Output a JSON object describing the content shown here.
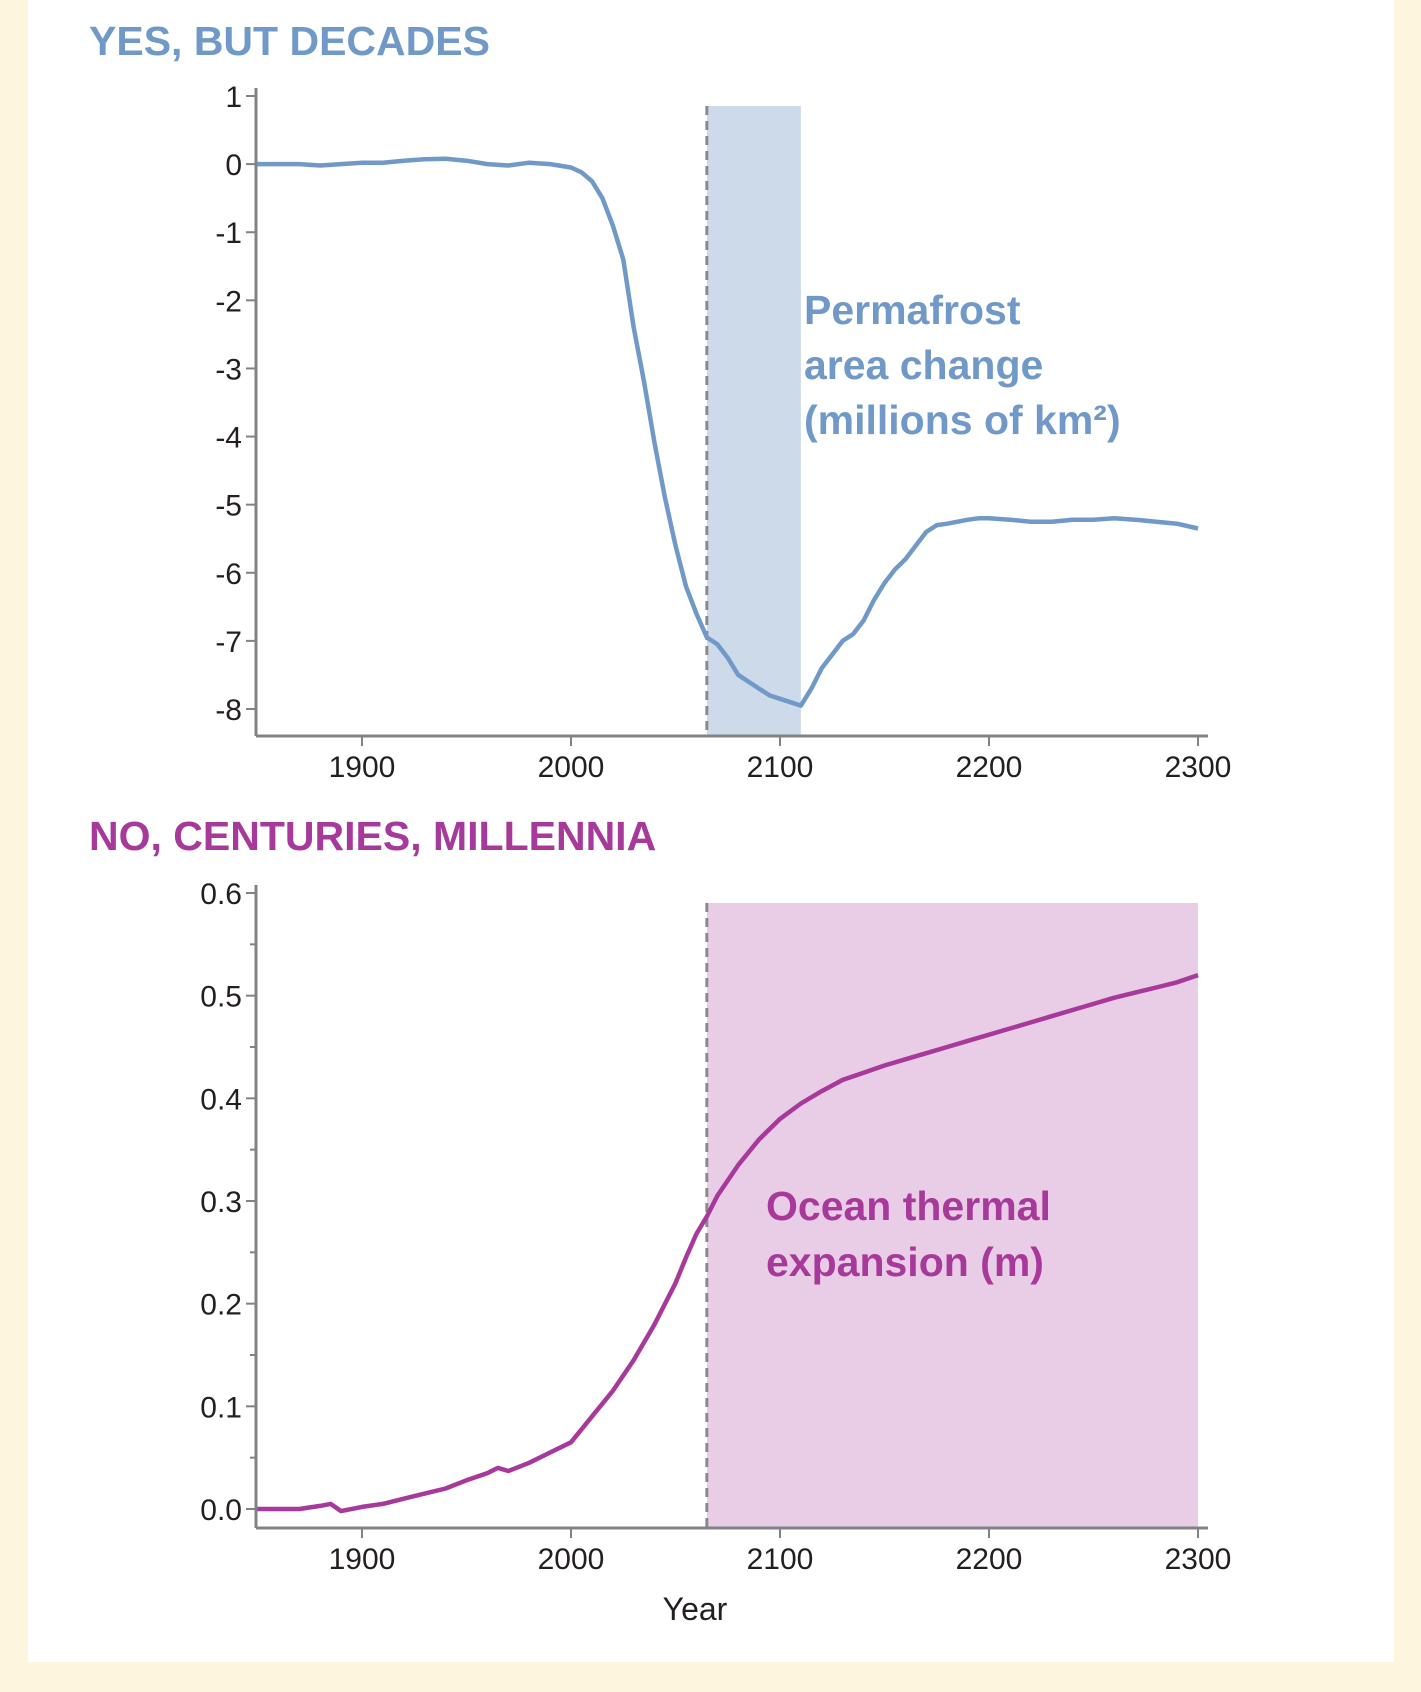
{
  "colors": {
    "permafrost": "#7199c7",
    "permafrost_band": "#cddaea",
    "ocean": "#a7399a",
    "ocean_band": "#e9cde6",
    "axis": "#808285",
    "dashed": "#8a8a8e",
    "text": "#231f20"
  },
  "chart_data": [
    {
      "type": "line",
      "title": "YES, BUT DECADES",
      "annotation": [
        "Permafrost",
        "area change",
        "(millions of km²)"
      ],
      "xlabel": "",
      "ylabel": "",
      "xlim": [
        1850,
        2300
      ],
      "ylim": [
        -8.2,
        1.0
      ],
      "xticks": [
        1900,
        2000,
        2100,
        2200,
        2300
      ],
      "yticks": [
        1,
        0,
        -1,
        -2,
        -3,
        -4,
        -5,
        -6,
        -7,
        -8
      ],
      "ytick_labels": [
        "1",
        "0",
        "-1",
        "-2",
        "-3",
        "-4",
        "-5",
        "-6",
        "-7",
        "-8"
      ],
      "shaded_region": [
        2065,
        2110
      ],
      "dashed_line_x": 2065,
      "series": [
        {
          "x": [
            1850,
            1860,
            1870,
            1880,
            1890,
            1900,
            1910,
            1920,
            1930,
            1940,
            1950,
            1960,
            1970,
            1980,
            1990,
            2000,
            2005,
            2010,
            2015,
            2020,
            2025,
            2030,
            2035,
            2040,
            2045,
            2050,
            2055,
            2060,
            2065,
            2070,
            2075,
            2080,
            2085,
            2090,
            2095,
            2100,
            2105,
            2110,
            2115,
            2120,
            2125,
            2130,
            2135,
            2140,
            2145,
            2150,
            2155,
            2160,
            2165,
            2170,
            2175,
            2180,
            2185,
            2190,
            2195,
            2200,
            2210,
            2220,
            2230,
            2240,
            2250,
            2260,
            2270,
            2280,
            2290,
            2300
          ],
          "y": [
            0.0,
            0.0,
            0.0,
            -0.02,
            0.0,
            0.02,
            0.02,
            0.05,
            0.07,
            0.08,
            0.05,
            0.0,
            -0.02,
            0.02,
            0.0,
            -0.05,
            -0.12,
            -0.25,
            -0.5,
            -0.9,
            -1.4,
            -2.4,
            -3.2,
            -4.1,
            -4.9,
            -5.6,
            -6.2,
            -6.6,
            -6.95,
            -7.05,
            -7.25,
            -7.5,
            -7.6,
            -7.7,
            -7.8,
            -7.85,
            -7.9,
            -7.95,
            -7.7,
            -7.4,
            -7.2,
            -7.0,
            -6.9,
            -6.7,
            -6.4,
            -6.15,
            -5.95,
            -5.8,
            -5.6,
            -5.4,
            -5.3,
            -5.28,
            -5.25,
            -5.22,
            -5.2,
            -5.2,
            -5.22,
            -5.25,
            -5.25,
            -5.22,
            -5.22,
            -5.2,
            -5.22,
            -5.25,
            -5.28,
            -5.35
          ]
        }
      ]
    },
    {
      "type": "line",
      "title": "NO, CENTURIES, MILLENNIA",
      "annotation": [
        "Ocean thermal",
        "expansion (m)"
      ],
      "xlabel": "Year",
      "ylabel": "",
      "xlim": [
        1850,
        2300
      ],
      "ylim": [
        -0.005,
        0.6
      ],
      "xticks": [
        1900,
        2000,
        2100,
        2200,
        2300
      ],
      "yticks": [
        0.6,
        0.5,
        0.4,
        0.3,
        0.2,
        0.1,
        0.0
      ],
      "ytick_labels": [
        "0.6",
        "0.5",
        "0.4",
        "0.3",
        "0.2",
        "0.1",
        "0.0"
      ],
      "shaded_region": [
        2065,
        2300
      ],
      "dashed_line_x": 2065,
      "series": [
        {
          "x": [
            1850,
            1860,
            1870,
            1880,
            1885,
            1890,
            1900,
            1910,
            1920,
            1930,
            1940,
            1950,
            1960,
            1965,
            1970,
            1980,
            1990,
            2000,
            2010,
            2020,
            2030,
            2040,
            2050,
            2055,
            2060,
            2065,
            2070,
            2080,
            2090,
            2100,
            2110,
            2120,
            2130,
            2140,
            2150,
            2160,
            2170,
            2180,
            2190,
            2200,
            2210,
            2220,
            2230,
            2240,
            2250,
            2260,
            2270,
            2280,
            2290,
            2300
          ],
          "y": [
            0.0,
            0.0,
            0.0,
            0.003,
            0.005,
            -0.002,
            0.002,
            0.005,
            0.01,
            0.015,
            0.02,
            0.028,
            0.035,
            0.04,
            0.037,
            0.045,
            0.055,
            0.065,
            0.09,
            0.115,
            0.145,
            0.18,
            0.22,
            0.245,
            0.268,
            0.285,
            0.305,
            0.335,
            0.36,
            0.38,
            0.395,
            0.407,
            0.418,
            0.425,
            0.432,
            0.438,
            0.444,
            0.45,
            0.456,
            0.462,
            0.468,
            0.474,
            0.48,
            0.486,
            0.492,
            0.498,
            0.503,
            0.508,
            0.513,
            0.52
          ]
        }
      ]
    }
  ]
}
